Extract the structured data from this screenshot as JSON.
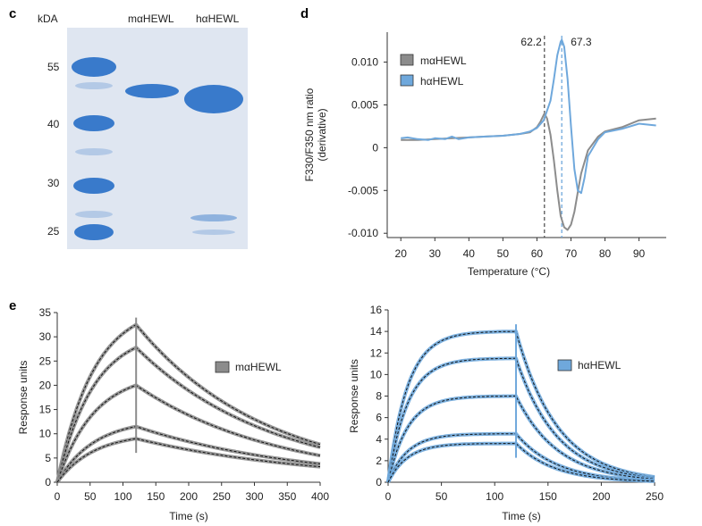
{
  "panels": {
    "c": "c",
    "d": "d",
    "e": "e"
  },
  "colors": {
    "m": "#8c8c8c",
    "h": "#6fa8dc",
    "fit": "#111111",
    "gel_bg": "#dfe6f1",
    "gel_band": "#2f74c8"
  },
  "gel": {
    "unit_label": "kDA",
    "lane_labels": [
      "mαHEWL",
      "hαHEWL"
    ],
    "markers": [
      "55",
      "40",
      "30",
      "25"
    ]
  },
  "chart_data": [
    {
      "type": "line",
      "panel": "d",
      "xlabel": "Temperature (°C)",
      "ylabel_lines": [
        "F330/F350 nm ratio",
        "(derivative)"
      ],
      "xlim": [
        16,
        98
      ],
      "ylim": [
        -0.0105,
        0.0135
      ],
      "xticks": [
        "20",
        "30",
        "40",
        "50",
        "60",
        "70",
        "80",
        "90"
      ],
      "yticks": [
        "0.010",
        "0.005",
        "0",
        "-0.005",
        "-0.010"
      ],
      "legend_position": "top-left",
      "vlines": [
        {
          "x": 62.2,
          "label": "62.2",
          "series": "mαHEWL"
        },
        {
          "x": 67.3,
          "label": "67.3",
          "series": "hαHEWL"
        }
      ],
      "series": [
        {
          "name": "mαHEWL",
          "x": [
            20,
            25,
            30,
            35,
            40,
            45,
            50,
            55,
            58,
            60,
            61,
            62.2,
            63,
            64,
            65,
            66,
            67,
            68,
            69,
            70,
            71,
            72,
            73,
            75,
            78,
            80,
            85,
            90,
            95
          ],
          "y": [
            0.0009,
            0.0009,
            0.001,
            0.0011,
            0.0012,
            0.0013,
            0.0014,
            0.0016,
            0.0018,
            0.0024,
            0.003,
            0.004,
            0.0034,
            0.0015,
            -0.0015,
            -0.005,
            -0.008,
            -0.0093,
            -0.0096,
            -0.009,
            -0.0075,
            -0.0052,
            -0.003,
            -0.0003,
            0.0013,
            0.0019,
            0.0024,
            0.0032,
            0.0034
          ]
        },
        {
          "name": "hαHEWL",
          "x": [
            20,
            22,
            25,
            28,
            30,
            33,
            35,
            37,
            40,
            45,
            50,
            55,
            58,
            60,
            62,
            64,
            65,
            66,
            67,
            67.3,
            68,
            69,
            70,
            71,
            72,
            73,
            74,
            75,
            78,
            80,
            85,
            90,
            95
          ],
          "y": [
            0.0011,
            0.0012,
            0.001,
            0.0009,
            0.0011,
            0.001,
            0.0013,
            0.001,
            0.0012,
            0.0013,
            0.0014,
            0.0016,
            0.0019,
            0.0023,
            0.0032,
            0.0055,
            0.008,
            0.0108,
            0.0124,
            0.0126,
            0.0118,
            0.008,
            0.0025,
            -0.0025,
            -0.005,
            -0.0053,
            -0.0035,
            -0.001,
            0.001,
            0.0018,
            0.0022,
            0.0028,
            0.0026
          ]
        }
      ]
    },
    {
      "type": "line",
      "panel": "e-left",
      "xlabel": "Time (s)",
      "ylabel": "Response units",
      "xlim": [
        0,
        400
      ],
      "ylim": [
        0,
        35
      ],
      "xticks": [
        "0",
        "50",
        "100",
        "150",
        "200",
        "250",
        "300",
        "350",
        "400"
      ],
      "yticks": [
        "0",
        "5",
        "10",
        "15",
        "20",
        "25",
        "30",
        "35"
      ],
      "legend": "mαHEWL",
      "legend_position": "right",
      "injection_end": 120,
      "curves": [
        {
          "peak": 32.5,
          "end": 7.8
        },
        {
          "peak": 27.8,
          "end": 7.2
        },
        {
          "peak": 20.0,
          "end": 5.5
        },
        {
          "peak": 11.5,
          "end": 3.8
        },
        {
          "peak": 9.0,
          "end": 3.2
        }
      ]
    },
    {
      "type": "line",
      "panel": "e-right",
      "xlabel": "Time (s)",
      "ylabel": "Response units",
      "xlim": [
        0,
        250
      ],
      "ylim": [
        0,
        16
      ],
      "xticks": [
        "0",
        "50",
        "100",
        "150",
        "200",
        "250"
      ],
      "yticks": [
        "0",
        "2",
        "4",
        "6",
        "8",
        "10",
        "12",
        "14",
        "16"
      ],
      "legend": "hαHEWL",
      "legend_position": "right",
      "injection_end": 120,
      "curves": [
        {
          "peak": 14.0,
          "end": 0.5
        },
        {
          "peak": 11.5,
          "end": 0.4
        },
        {
          "peak": 8.0,
          "end": 0.3
        },
        {
          "peak": 4.5,
          "end": 0.15
        },
        {
          "peak": 3.6,
          "end": 0.1
        }
      ]
    }
  ]
}
